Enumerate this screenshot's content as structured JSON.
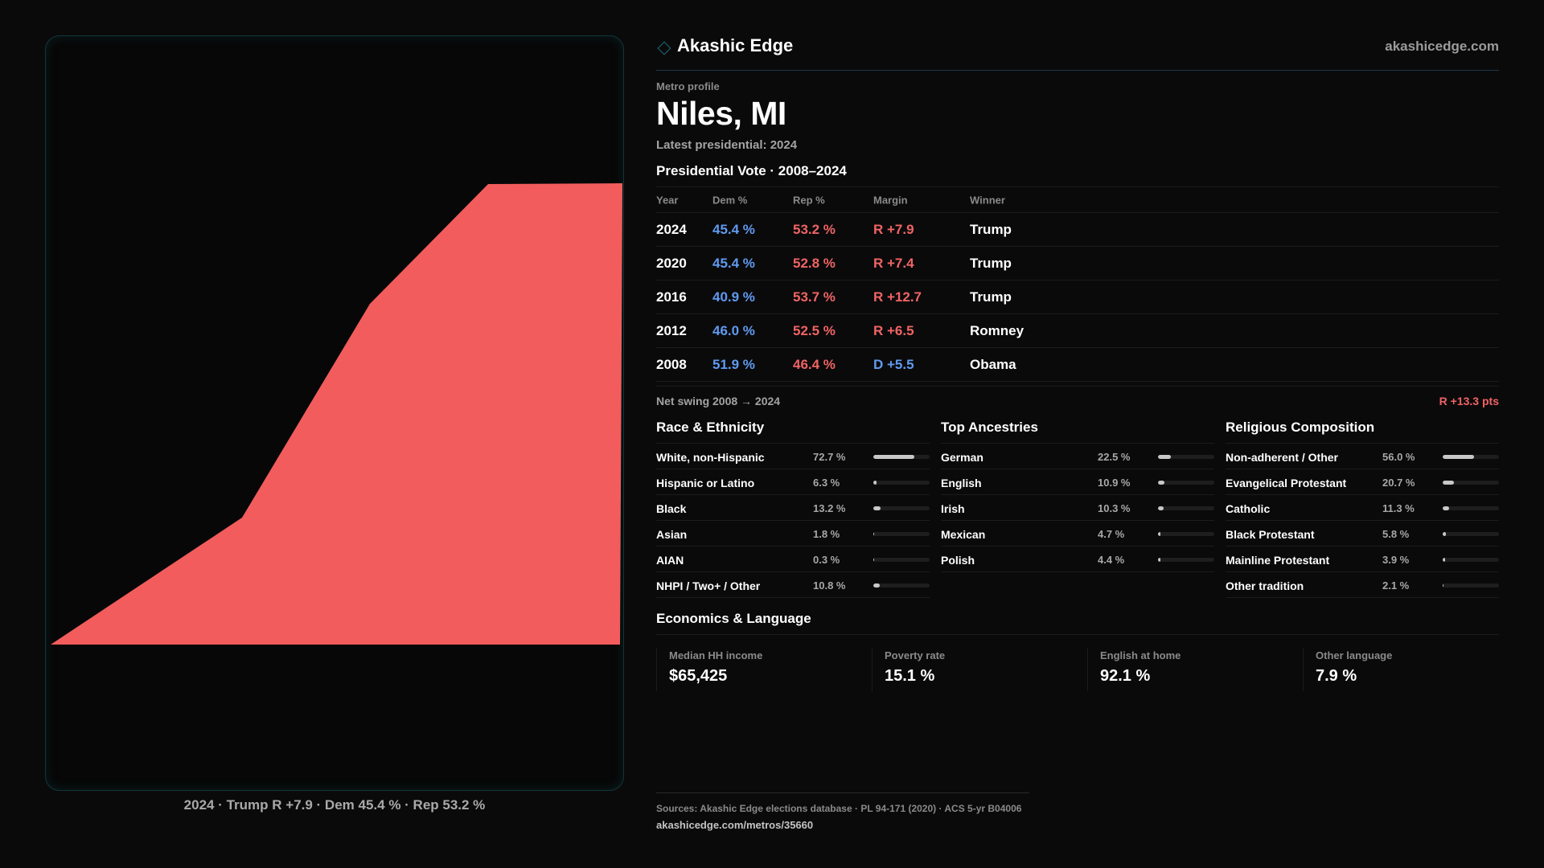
{
  "brand": {
    "name": "Akashic Edge",
    "url": "akashicedge.com",
    "icon": "diamond-icon",
    "accent": "#1b6f78"
  },
  "profile": {
    "eyebrow": "Metro profile",
    "title": "Niles, MI",
    "latest": "Latest presidential: 2024"
  },
  "map": {
    "fill_color": "#f25c5c",
    "caption": "2024 · Trump R +7.9 · Dem 45.4 % · Rep 53.2 %"
  },
  "vote": {
    "title": "Presidential Vote · 2008–2024",
    "headers": {
      "year": "Year",
      "dem": "Dem %",
      "rep": "Rep %",
      "margin": "Margin",
      "winner": "Winner"
    },
    "rows": [
      {
        "year": "2024",
        "dem": "45.4 %",
        "rep": "53.2 %",
        "margin": "R +7.9",
        "margin_party": "rep",
        "winner": "Trump"
      },
      {
        "year": "2020",
        "dem": "45.4 %",
        "rep": "52.8 %",
        "margin": "R +7.4",
        "margin_party": "rep",
        "winner": "Trump"
      },
      {
        "year": "2016",
        "dem": "40.9 %",
        "rep": "53.7 %",
        "margin": "R +12.7",
        "margin_party": "rep",
        "winner": "Trump"
      },
      {
        "year": "2012",
        "dem": "46.0 %",
        "rep": "52.5 %",
        "margin": "R +6.5",
        "margin_party": "rep",
        "winner": "Romney"
      },
      {
        "year": "2008",
        "dem": "51.9 %",
        "rep": "46.4 %",
        "margin": "D +5.5",
        "margin_party": "dem",
        "winner": "Obama"
      }
    ],
    "net_swing_label": "Net swing 2008 → 2024",
    "net_swing_value": "R +13.3 pts",
    "dem_color": "#5f9bf0",
    "rep_color": "#f06464"
  },
  "race": {
    "title": "Race & Ethnicity",
    "items": [
      {
        "label": "White, non-Hispanic",
        "value": "72.7 %",
        "pct": 72.7
      },
      {
        "label": "Hispanic or Latino",
        "value": "6.3 %",
        "pct": 6.3
      },
      {
        "label": "Black",
        "value": "13.2 %",
        "pct": 13.2
      },
      {
        "label": "Asian",
        "value": "1.8 %",
        "pct": 1.8
      },
      {
        "label": "AIAN",
        "value": "0.3 %",
        "pct": 0.3
      },
      {
        "label": "NHPI / Two+ / Other",
        "value": "10.8 %",
        "pct": 10.8
      }
    ]
  },
  "ancestry": {
    "title": "Top Ancestries",
    "items": [
      {
        "label": "German",
        "value": "22.5 %",
        "pct": 22.5
      },
      {
        "label": "English",
        "value": "10.9 %",
        "pct": 10.9
      },
      {
        "label": "Irish",
        "value": "10.3 %",
        "pct": 10.3
      },
      {
        "label": "Mexican",
        "value": "4.7 %",
        "pct": 4.7
      },
      {
        "label": "Polish",
        "value": "4.4 %",
        "pct": 4.4
      }
    ]
  },
  "religion": {
    "title": "Religious Composition",
    "items": [
      {
        "label": "Non-adherent / Other",
        "value": "56.0 %",
        "pct": 56.0
      },
      {
        "label": "Evangelical Protestant",
        "value": "20.7 %",
        "pct": 20.7
      },
      {
        "label": "Catholic",
        "value": "11.3 %",
        "pct": 11.3
      },
      {
        "label": "Black Protestant",
        "value": "5.8 %",
        "pct": 5.8
      },
      {
        "label": "Mainline Protestant",
        "value": "3.9 %",
        "pct": 3.9
      },
      {
        "label": "Other tradition",
        "value": "2.1 %",
        "pct": 2.1
      }
    ]
  },
  "economics": {
    "title": "Economics & Language",
    "cards": [
      {
        "label": "Median HH income",
        "value": "$65,425"
      },
      {
        "label": "Poverty rate",
        "value": "15.1 %"
      },
      {
        "label": "English at home",
        "value": "92.1 %"
      },
      {
        "label": "Other language",
        "value": "7.9 %"
      }
    ]
  },
  "footer": {
    "sources": "Sources: Akashic Edge elections database · PL 94-171 (2020) · ACS 5-yr B04006",
    "url": "akashicedge.com/metros/35660"
  }
}
